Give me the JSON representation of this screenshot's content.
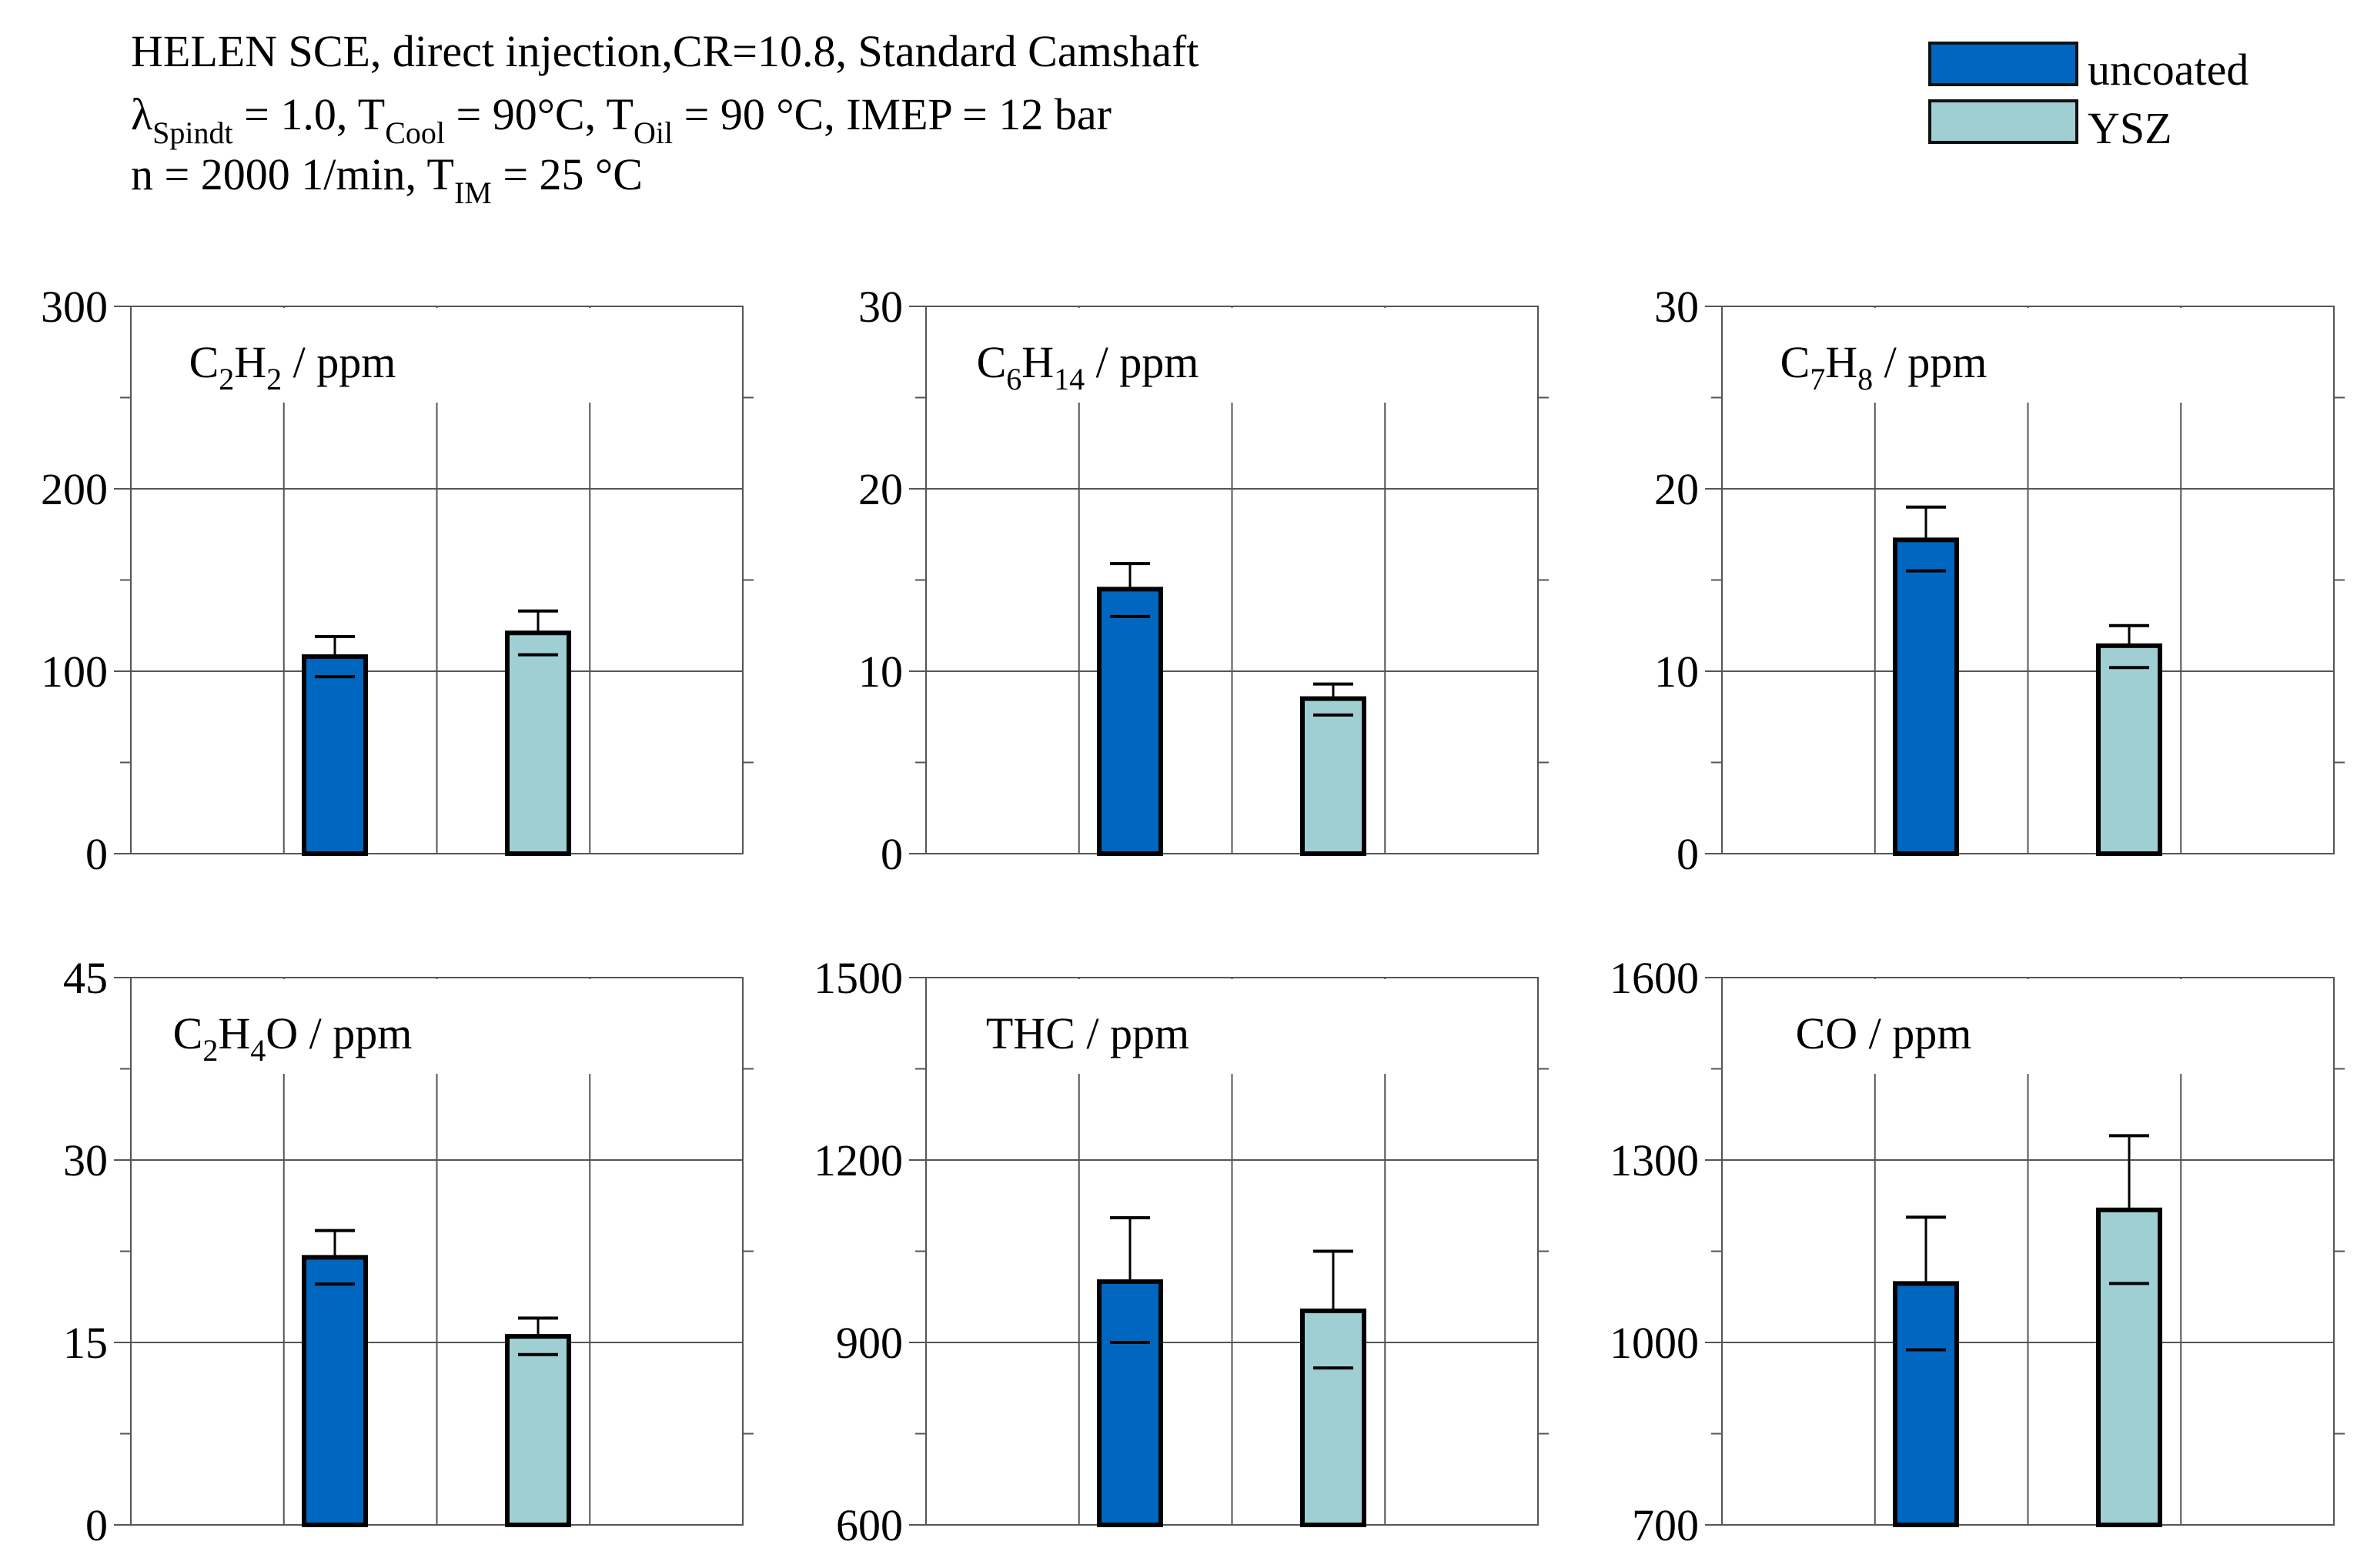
{
  "header": {
    "line1": "HELEN SCE, direct injection,CR=10.8, Standard Camshaft",
    "line2": {
      "lambda_sym": "λ",
      "lambda_sub": "Spindt",
      "lambda_val": " = 1.0, T",
      "tcool_sub": "Cool",
      "tcool_val": " = 90°C, T",
      "toil_sub": "Oil",
      "toil_val": " = 90 °C, IMEP = 12 bar"
    },
    "line3": {
      "main": "n = 2000 1/min, T",
      "tim_sub": "IM",
      "tim_val": " = 25 °C"
    }
  },
  "legend": {
    "items": [
      {
        "label": "uncoated",
        "color": "#0067C0"
      },
      {
        "label": "YSZ",
        "color": "#9FCFD3"
      }
    ]
  },
  "colors": {
    "uncoated": "#0067C0",
    "ysz": "#9FCFD3",
    "grid": "#555555"
  },
  "chart_data": [
    {
      "type": "bar",
      "title_parts": [
        [
          "C",
          ""
        ],
        [
          "2",
          "sub"
        ],
        [
          "H",
          ""
        ],
        [
          "2",
          "sub"
        ],
        [
          " / ppm",
          ""
        ]
      ],
      "categories": [
        "uncoated",
        "YSZ"
      ],
      "series": [
        {
          "name": "uncoated",
          "value": 108,
          "err_low": 97,
          "err_high": 119
        },
        {
          "name": "YSZ",
          "value": 121,
          "err_low": 109,
          "err_high": 133
        }
      ],
      "ylim": [
        0,
        300
      ],
      "yticks": [
        0,
        100,
        200,
        300
      ],
      "ytick_labels": [
        "0",
        "100",
        "200",
        "300"
      ]
    },
    {
      "type": "bar",
      "title_parts": [
        [
          "C",
          ""
        ],
        [
          "6",
          "sub"
        ],
        [
          "H",
          ""
        ],
        [
          "14",
          "sub"
        ],
        [
          " / ppm",
          ""
        ]
      ],
      "categories": [
        "uncoated",
        "YSZ"
      ],
      "series": [
        {
          "name": "uncoated",
          "value": 14.5,
          "err_low": 13.0,
          "err_high": 15.9
        },
        {
          "name": "YSZ",
          "value": 8.5,
          "err_low": 7.6,
          "err_high": 9.3
        }
      ],
      "ylim": [
        0,
        30
      ],
      "yticks": [
        0,
        10,
        20,
        30
      ],
      "ytick_labels": [
        "0",
        "10",
        "20",
        "30"
      ]
    },
    {
      "type": "bar",
      "title_parts": [
        [
          "C",
          ""
        ],
        [
          "7",
          "sub"
        ],
        [
          "H",
          ""
        ],
        [
          "8",
          "sub"
        ],
        [
          " / ppm",
          ""
        ]
      ],
      "categories": [
        "uncoated",
        "YSZ"
      ],
      "series": [
        {
          "name": "uncoated",
          "value": 17.2,
          "err_low": 15.5,
          "err_high": 19.0
        },
        {
          "name": "YSZ",
          "value": 11.4,
          "err_low": 10.2,
          "err_high": 12.5
        }
      ],
      "ylim": [
        0,
        30
      ],
      "yticks": [
        0,
        10,
        20,
        30
      ],
      "ytick_labels": [
        "0",
        "10",
        "20",
        "30"
      ]
    },
    {
      "type": "bar",
      "title_parts": [
        [
          "C",
          ""
        ],
        [
          "2",
          "sub"
        ],
        [
          "H",
          ""
        ],
        [
          "4",
          "sub"
        ],
        [
          "O / ppm",
          ""
        ]
      ],
      "categories": [
        "uncoated",
        "YSZ"
      ],
      "series": [
        {
          "name": "uncoated",
          "value": 22.0,
          "err_low": 19.8,
          "err_high": 24.2
        },
        {
          "name": "YSZ",
          "value": 15.5,
          "err_low": 14.0,
          "err_high": 17.0
        }
      ],
      "ylim": [
        0,
        45
      ],
      "yticks": [
        0,
        15,
        30,
        45
      ],
      "ytick_labels": [
        "0",
        "15",
        "30",
        "45"
      ]
    },
    {
      "type": "bar",
      "title_parts": [
        [
          "THC / ppm",
          ""
        ]
      ],
      "categories": [
        "uncoated",
        "YSZ"
      ],
      "series": [
        {
          "name": "uncoated",
          "value": 1000,
          "err_low": 900,
          "err_high": 1105
        },
        {
          "name": "YSZ",
          "value": 952,
          "err_low": 858,
          "err_high": 1050
        }
      ],
      "ylim": [
        600,
        1500
      ],
      "yticks": [
        600,
        900,
        1200,
        1500
      ],
      "ytick_labels": [
        "600",
        "900",
        "1200",
        "1500"
      ]
    },
    {
      "type": "bar",
      "title_parts": [
        [
          "CO / ppm",
          ""
        ]
      ],
      "categories": [
        "uncoated",
        "YSZ"
      ],
      "series": [
        {
          "name": "uncoated",
          "value": 1097,
          "err_low": 988,
          "err_high": 1206
        },
        {
          "name": "YSZ",
          "value": 1218,
          "err_low": 1097,
          "err_high": 1340
        }
      ],
      "ylim": [
        700,
        1600
      ],
      "yticks": [
        700,
        1000,
        1300,
        1600
      ],
      "ytick_labels": [
        "700",
        "1000",
        "1300",
        "1600"
      ]
    }
  ]
}
